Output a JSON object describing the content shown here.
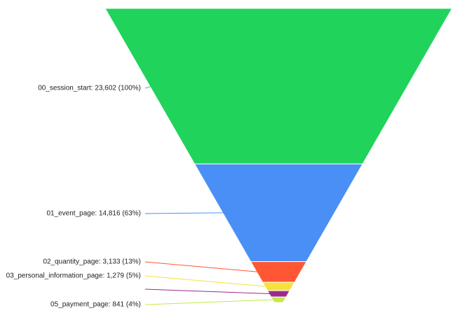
{
  "chart_data": {
    "type": "funnel",
    "values": [
      23602,
      14816,
      3133,
      1279,
      950,
      841
    ],
    "value_labels": [
      "00_session_start: 23,602 (100%)",
      "01_event_page: 14,816 (63%)",
      "02_quantity_page: 3,133 (13%)",
      "03_personal_information_page: 1,279 (5%)",
      null,
      "05_payment_page: 841 (4%)"
    ],
    "colors": [
      "#20d35a",
      "#4a8ff5",
      "#ff5733",
      "#f7e13a",
      "#9c2a8e",
      "#c6e84a"
    ]
  }
}
